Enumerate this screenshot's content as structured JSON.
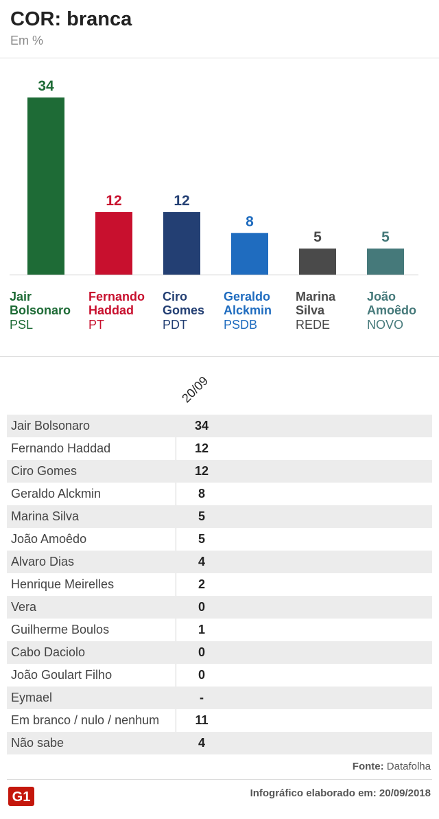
{
  "header": {
    "title": "COR: branca",
    "subtitle": "Em %"
  },
  "chart_data": {
    "type": "bar",
    "categories": [
      "Jair Bolsonaro",
      "Fernando Haddad",
      "Ciro Gomes",
      "Geraldo Alckmin",
      "Marina Silva",
      "João Amoêdo"
    ],
    "values": [
      34,
      12,
      12,
      8,
      5,
      5
    ],
    "value_labels": [
      "34",
      "12",
      "12",
      "8",
      "5",
      "5"
    ],
    "ylim": [
      0,
      34
    ],
    "grid": false,
    "colors": [
      "#1e6b36",
      "#c8102e",
      "#233f73",
      "#1f6cbf",
      "#4a4a4a",
      "#45797a"
    ],
    "candidates": [
      {
        "line1": "Jair",
        "line2": "Bolsonaro",
        "party": "PSL"
      },
      {
        "line1": "Fernando",
        "line2": "Haddad",
        "party": "PT"
      },
      {
        "line1": "Ciro",
        "line2": "Gomes",
        "party": "PDT"
      },
      {
        "line1": "Geraldo",
        "line2": "Alckmin",
        "party": "PSDB"
      },
      {
        "line1": "Marina",
        "line2": "Silva",
        "party": "REDE"
      },
      {
        "line1": "João",
        "line2": "Amoêdo",
        "party": "NOVO"
      }
    ]
  },
  "table": {
    "column_header": "20/09",
    "rows": [
      {
        "name": "Jair Bolsonaro",
        "value": "34"
      },
      {
        "name": "Fernando Haddad",
        "value": "12"
      },
      {
        "name": "Ciro Gomes",
        "value": "12"
      },
      {
        "name": "Geraldo Alckmin",
        "value": "8"
      },
      {
        "name": "Marina Silva",
        "value": "5"
      },
      {
        "name": "João Amoêdo",
        "value": "5"
      },
      {
        "name": "Alvaro Dias",
        "value": "4"
      },
      {
        "name": "Henrique Meirelles",
        "value": "2"
      },
      {
        "name": "Vera",
        "value": "0"
      },
      {
        "name": "Guilherme Boulos",
        "value": "1"
      },
      {
        "name": "Cabo Daciolo",
        "value": "0"
      },
      {
        "name": "João Goulart Filho",
        "value": "0"
      },
      {
        "name": "Eymael",
        "value": "-"
      },
      {
        "name": "Em branco / nulo / nenhum",
        "value": "11"
      },
      {
        "name": "Não sabe",
        "value": "4"
      }
    ]
  },
  "footer": {
    "source_label": "Fonte:",
    "source_value": "Datafolha",
    "logo_text": "G1",
    "credit": "Infográfico elaborado em: 20/09/2018"
  }
}
